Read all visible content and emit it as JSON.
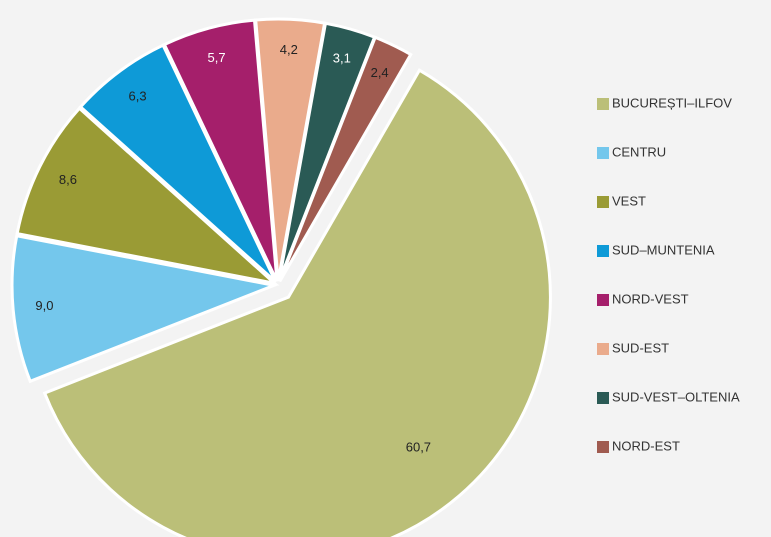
{
  "chart_data": {
    "type": "pie",
    "categories": [
      "BUCUREȘTI–ILFOV",
      "CENTRU",
      "VEST",
      "SUD–MUNTENIA",
      "NORD-VEST",
      "SUD-EST",
      "SUD-VEST–OLTENIA",
      "NORD-EST"
    ],
    "values": [
      60.7,
      9.0,
      8.6,
      6.3,
      5.7,
      4.2,
      3.1,
      2.4
    ],
    "value_labels": [
      "60,7",
      "9,0",
      "8,6",
      "6,3",
      "5,7",
      "4,2",
      "3,1",
      "2,4"
    ],
    "colors": [
      "#bbbf78",
      "#74c7ec",
      "#9a9b35",
      "#0e9ad7",
      "#a51f6b",
      "#eaab8c",
      "#2a5a55",
      "#a05b50"
    ],
    "legend": "right"
  }
}
